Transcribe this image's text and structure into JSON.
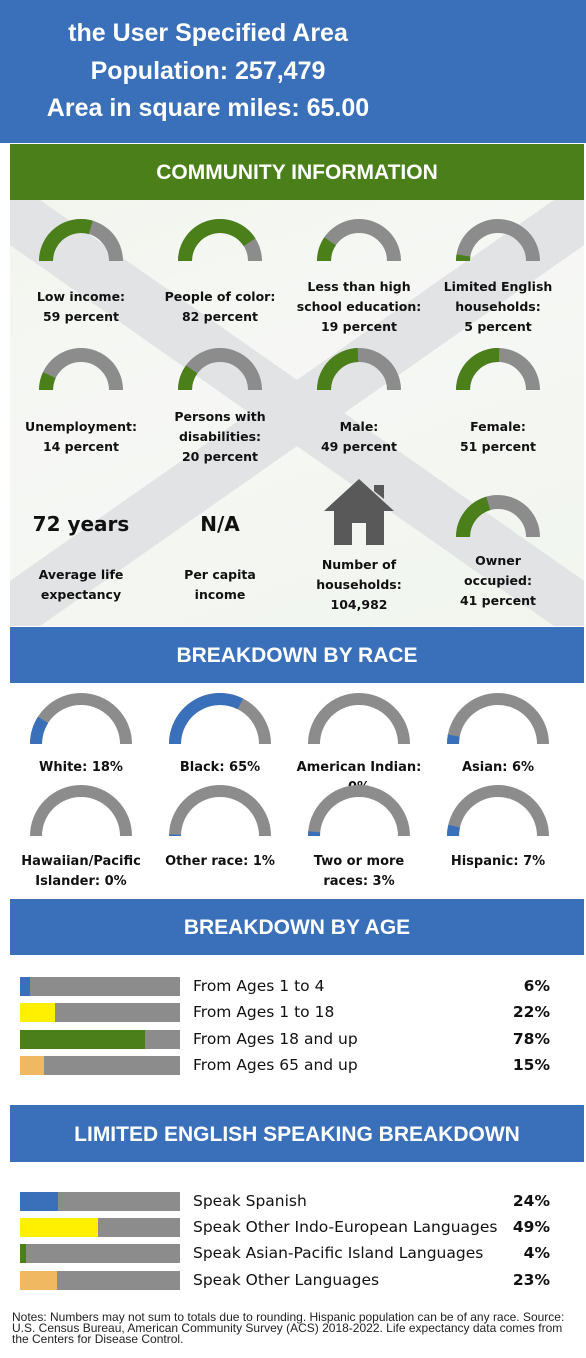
{
  "header": {
    "line1": "the User Specified Area",
    "line2": "Population: 257,479",
    "line3": "Area in square miles: 65.00"
  },
  "colors": {
    "green": "#4a7f1a",
    "blue": "#3a6fba",
    "gray": "#8c8c8c",
    "yellow": "#ffef00",
    "orange": "#f0b860"
  },
  "community": {
    "title": "COMMUNITY INFORMATION",
    "gauges": [
      {
        "lines": [
          "Low income:",
          "59 percent"
        ],
        "value": 59
      },
      {
        "lines": [
          "People of color:",
          "82 percent"
        ],
        "value": 82
      },
      {
        "lines": [
          "Less than high",
          "school education:",
          "19 percent"
        ],
        "value": 19
      },
      {
        "lines": [
          "Limited English",
          "households:",
          "5 percent"
        ],
        "value": 5
      },
      {
        "lines": [
          "Unemployment:",
          "14 percent"
        ],
        "value": 14
      },
      {
        "lines": [
          "Persons with",
          "disabilities:",
          "20 percent"
        ],
        "value": 20
      },
      {
        "lines": [
          "Male:",
          "49 percent"
        ],
        "value": 49
      },
      {
        "lines": [
          "Female:",
          "51 percent"
        ],
        "value": 51
      }
    ],
    "life_expectancy": {
      "value": "72 years",
      "lines": [
        "Average life",
        "expectancy"
      ]
    },
    "per_capita": {
      "value": "N/A",
      "lines": [
        "Per capita",
        "income"
      ]
    },
    "households": {
      "icon": "house-icon",
      "lines": [
        "Number of",
        "households:",
        "104,982"
      ]
    },
    "owner": {
      "lines": [
        "Owner",
        "occupied:",
        "41 percent"
      ],
      "value": 41
    }
  },
  "race": {
    "title": "BREAKDOWN BY RACE",
    "items": [
      {
        "lines": [
          "White: 18%"
        ],
        "value": 18
      },
      {
        "lines": [
          "Black: 65%"
        ],
        "value": 65
      },
      {
        "lines": [
          "American Indian: 0%"
        ],
        "value": 0
      },
      {
        "lines": [
          "Asian: 6%"
        ],
        "value": 6
      },
      {
        "lines": [
          "Hawaiian/Pacific",
          "Islander: 0%"
        ],
        "value": 0
      },
      {
        "lines": [
          "Other race: 1%"
        ],
        "value": 1
      },
      {
        "lines": [
          "Two or more",
          "races: 3%"
        ],
        "value": 3
      },
      {
        "lines": [
          "Hispanic: 7%"
        ],
        "value": 7
      }
    ]
  },
  "age": {
    "title": "BREAKDOWN BY AGE",
    "rows": [
      {
        "label": "From Ages 1 to 4",
        "pct": "6%",
        "value": 6,
        "color": "#3a6fba"
      },
      {
        "label": "From Ages 1 to 18",
        "pct": "22%",
        "value": 22,
        "color": "#ffef00"
      },
      {
        "label": "From Ages 18 and up",
        "pct": "78%",
        "value": 78,
        "color": "#4a7f1a"
      },
      {
        "label": "From Ages 65 and up",
        "pct": "15%",
        "value": 15,
        "color": "#f0b860"
      }
    ]
  },
  "language": {
    "title": "LIMITED ENGLISH SPEAKING BREAKDOWN",
    "rows": [
      {
        "label": "Speak Spanish",
        "pct": "24%",
        "value": 24,
        "color": "#3a6fba"
      },
      {
        "label": "Speak Other Indo-European Languages",
        "pct": "49%",
        "value": 49,
        "color": "#ffef00"
      },
      {
        "label": "Speak Asian-Pacific Island Languages",
        "pct": "4%",
        "value": 4,
        "color": "#4a7f1a"
      },
      {
        "label": "Speak Other Languages",
        "pct": "23%",
        "value": 23,
        "color": "#f0b860"
      }
    ]
  },
  "notes": "Notes: Numbers may not sum to totals due to rounding. Hispanic population can be of any race. Source: U.S. Census Bureau, American Community Survey (ACS) 2018-2022. Life expectancy data comes from the Centers for Disease Control."
}
